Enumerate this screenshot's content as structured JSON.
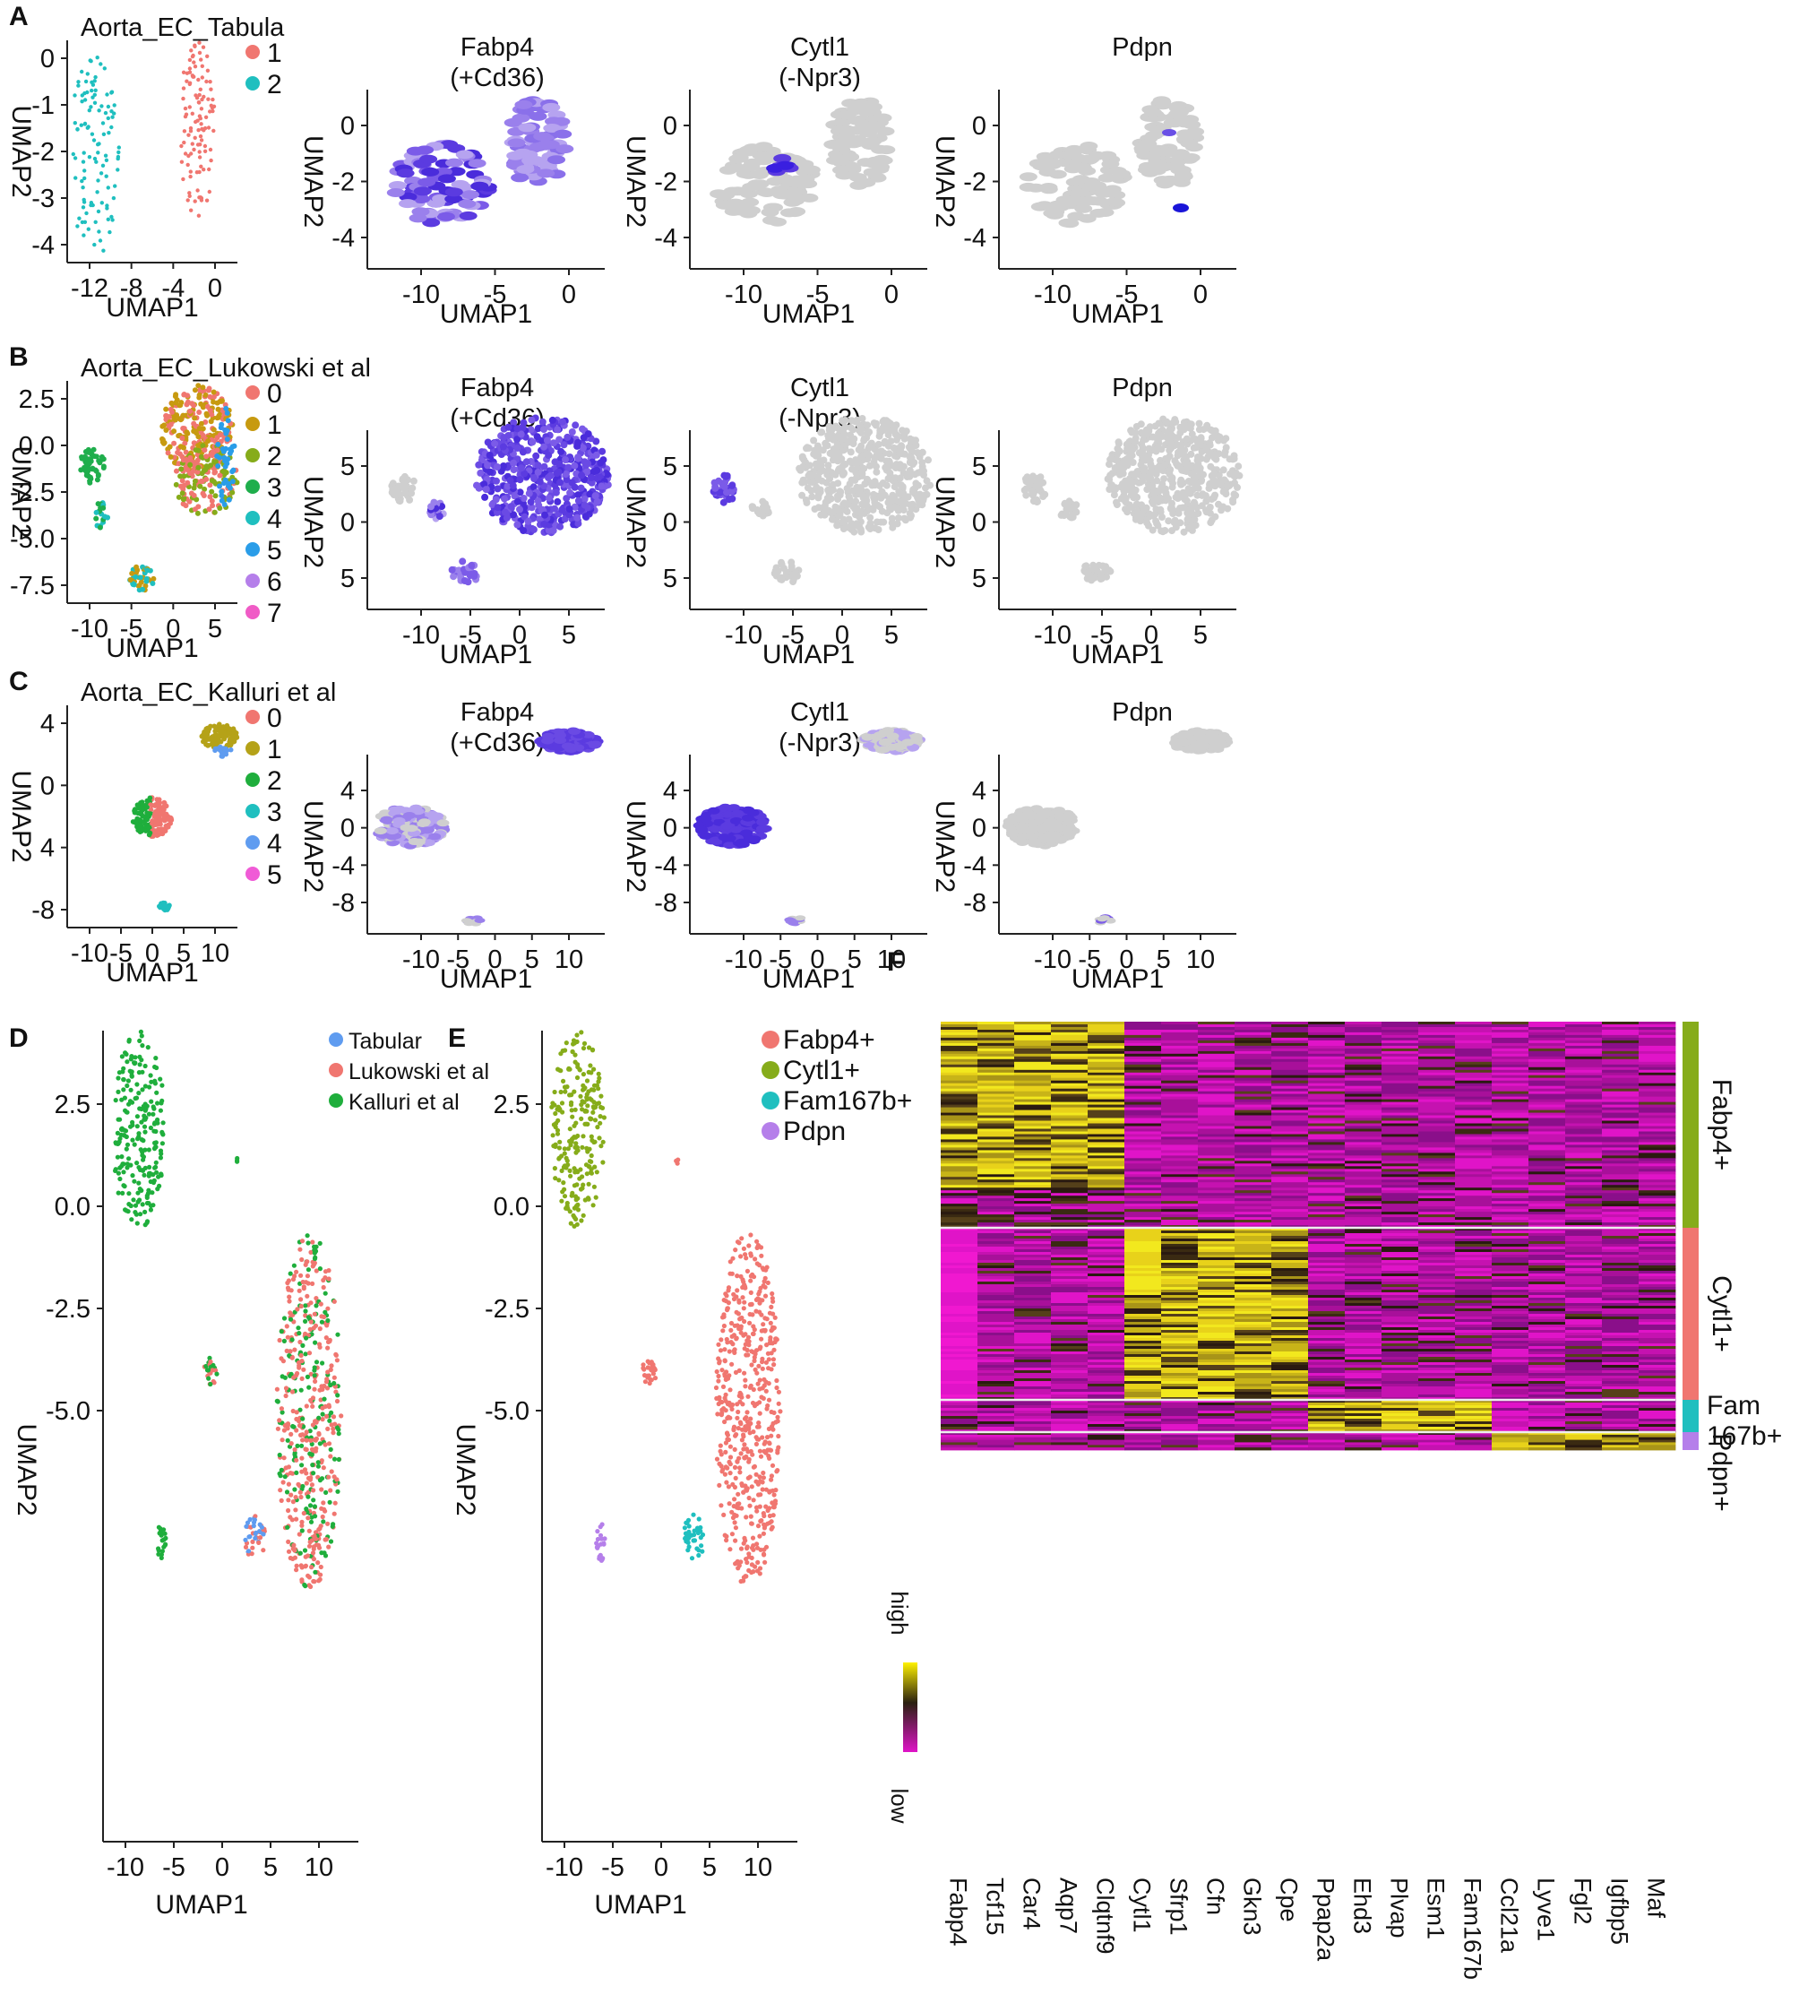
{
  "figure": {
    "rows": [
      {
        "letter": "A",
        "cluster_title": "Aorta_EC_Tabula",
        "legend": [
          "1",
          "2"
        ],
        "legend_colors": [
          "#f07670",
          "#1fbfbf"
        ],
        "feature_titles": [
          [
            "Fabp4",
            "(+Cd36)"
          ],
          [
            "Cytl1",
            "(-Npr3)"
          ],
          [
            "Pdpn",
            ""
          ]
        ],
        "cluster_xticks": [
          "-12",
          "-8",
          "-4",
          "0"
        ],
        "cluster_yticks": [
          "0",
          "-1",
          "-2",
          "-3",
          "-4"
        ],
        "feature_xticks": [
          "-10",
          "-5",
          "0"
        ],
        "feature_yticks": [
          "0",
          "-2",
          "-4"
        ]
      },
      {
        "letter": "B",
        "cluster_title": "Aorta_EC_Lukowski et al",
        "legend": [
          "0",
          "1",
          "2",
          "3",
          "4",
          "5",
          "6",
          "7"
        ],
        "legend_colors": [
          "#f07670",
          "#c79a10",
          "#86ac1a",
          "#1fae4c",
          "#1fbfbf",
          "#2a9de8",
          "#b57fea",
          "#f05bc6"
        ],
        "feature_titles": [
          [
            "Fabp4",
            "(+Cd36)"
          ],
          [
            "Cytl1",
            "(-Npr3)"
          ],
          [
            "Pdpn",
            ""
          ]
        ],
        "cluster_xticks": [
          "-10",
          "-5",
          "0",
          "5"
        ],
        "cluster_yticks": [
          "2.5",
          "0.0",
          "-2.5",
          "-5.0",
          "-7.5"
        ],
        "feature_xticks": [
          "-10",
          "-5",
          "0",
          "5"
        ],
        "feature_yticks": [
          "5",
          "0",
          "5"
        ]
      },
      {
        "letter": "C",
        "cluster_title": "Aorta_EC_Kalluri et al",
        "legend": [
          "0",
          "1",
          "2",
          "3",
          "4",
          "5"
        ],
        "legend_colors": [
          "#f07670",
          "#b5a218",
          "#1fae3c",
          "#1fbfbf",
          "#5f9cf0",
          "#f05bd6"
        ],
        "feature_titles": [
          [
            "Fabp4",
            "(+Cd36)"
          ],
          [
            "Cytl1",
            "(-Npr3)"
          ],
          [
            "Pdpn",
            ""
          ]
        ],
        "cluster_xticks": [
          "-10",
          "-5",
          "0",
          "5",
          "10"
        ],
        "cluster_yticks": [
          "4",
          "0",
          "4",
          "-8"
        ],
        "feature_xticks": [
          "-10",
          "-5",
          "0",
          "5",
          "10"
        ],
        "feature_yticks": [
          "4",
          "0",
          "-4",
          "-8"
        ]
      }
    ],
    "axis": {
      "x": "UMAP1",
      "y": "UMAP2"
    },
    "panelD": {
      "letter": "D",
      "legend": [
        "Tabular",
        "Lukowski et al",
        "Kalluri et al"
      ],
      "legend_colors": [
        "#5f9cf0",
        "#f07670",
        "#1fae3c"
      ],
      "xticks": [
        "-10",
        "-5",
        "0",
        "5",
        "10"
      ],
      "yticks": [
        "2.5",
        "0.0",
        "-2.5",
        "-5.0"
      ]
    },
    "panelE": {
      "letter": "E",
      "legend": [
        "Fabp4+",
        "Cytl1+",
        "Fam167b+",
        "Pdpn"
      ],
      "legend_colors": [
        "#f07670",
        "#86ac1a",
        "#1fbfbf",
        "#b57fea"
      ],
      "xticks": [
        "-10",
        "-5",
        "0",
        "5",
        "10"
      ],
      "yticks": [
        "2.5",
        "0.0",
        "-2.5",
        "-5.0"
      ]
    },
    "panelF": {
      "letter": "F",
      "genes": [
        "Fabp4",
        "Tcf15",
        "Car4",
        "Aqp7",
        "Clqtnf9",
        "Cytl1",
        "Sfrp1",
        "Cfn",
        "Gkn3",
        "Cpe",
        "Ppap2a",
        "Ehd3",
        "Plvap",
        "Esm1",
        "Fam167b",
        "Ccl21a",
        "Lyve1",
        "Fgl2",
        "Igfbp5",
        "Maf"
      ],
      "scale_high": "high",
      "scale_low": "low",
      "groups": [
        {
          "label": "Fabp4+",
          "color": "#86ac1a"
        },
        {
          "label": "Cytl1+",
          "color": "#f07670"
        },
        {
          "label": "Fam\n167b+",
          "color": "#1fbfbf"
        },
        {
          "label": "Pdpn+",
          "color": "#b57fea"
        }
      ]
    }
  }
}
